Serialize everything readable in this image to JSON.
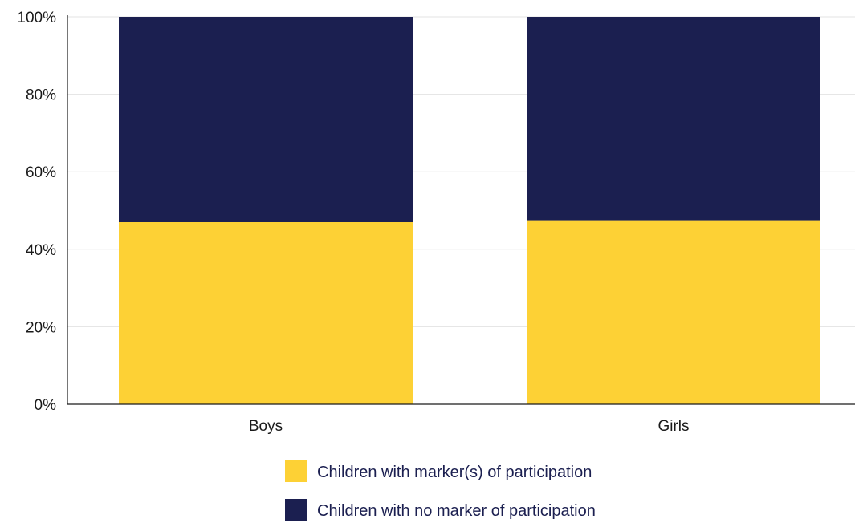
{
  "chart_data": {
    "type": "bar",
    "stacked": true,
    "categories": [
      "Boys",
      "Girls"
    ],
    "series": [
      {
        "name": "Children with marker(s) of participation",
        "values": [
          47,
          47.5
        ],
        "color": "#fdd135"
      },
      {
        "name": "Children with no marker of participation",
        "values": [
          53,
          52.5
        ],
        "color": "#1b1f50"
      }
    ],
    "y_ticks": [
      "0%",
      "20%",
      "40%",
      "60%",
      "80%",
      "100%"
    ],
    "ylim": [
      0,
      100
    ],
    "grid": true,
    "legend_position": "bottom-center"
  }
}
